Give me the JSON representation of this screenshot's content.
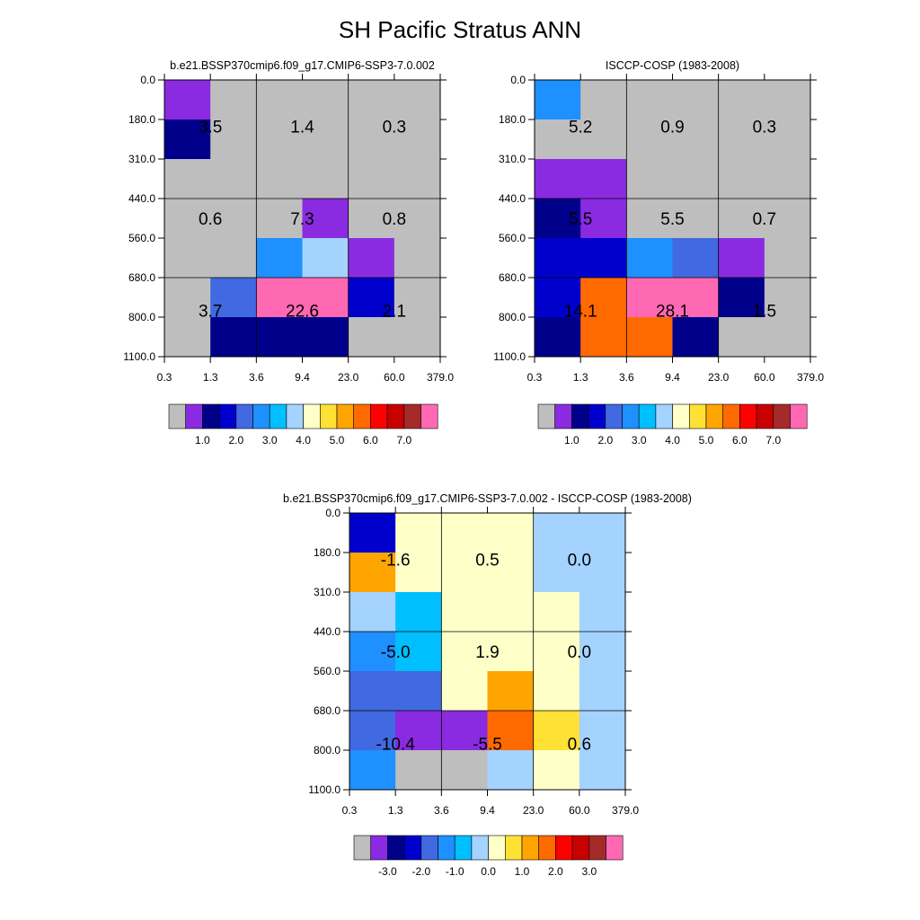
{
  "page": {
    "title": "SH Pacific Stratus ANN"
  },
  "palette": {
    "gray": "#BEBEBE",
    "purple": "#8A2BE2",
    "navy": "#00008B",
    "blue": "#0000CD",
    "royal": "#4169E1",
    "dodger": "#1E90FF",
    "deepsky": "#00BFFF",
    "lightblue": "#A4D3FF",
    "cream": "#FFFFC8",
    "gold": "#FFE135",
    "orange": "#FFA500",
    "darkorange": "#FF6A00",
    "red": "#FF0000",
    "crimson": "#C80000",
    "brown": "#A52A2A",
    "pink": "#FF69B4"
  },
  "chart_data": [
    {
      "id": "model",
      "type": "heatmap",
      "title": "b.e21.BSSP370cmip6.f09_g17.CMIP6-SSP3-7.0.002",
      "x_ticks": [
        "0.3",
        "1.3",
        "3.6",
        "9.4",
        "23.0",
        "60.0",
        "379.0"
      ],
      "y_ticks": [
        "0.0",
        "180.0",
        "310.0",
        "440.0",
        "560.0",
        "680.0",
        "800.0",
        "1100.0"
      ],
      "cells": [
        [
          "purple",
          "gray",
          "gray",
          "gray",
          "gray",
          "gray"
        ],
        [
          "navy",
          "gray",
          "gray",
          "gray",
          "gray",
          "gray"
        ],
        [
          "gray",
          "gray",
          "gray",
          "gray",
          "gray",
          "gray"
        ],
        [
          "gray",
          "gray",
          "gray",
          "purple",
          "gray",
          "gray"
        ],
        [
          "gray",
          "gray",
          "dodger",
          "lightblue",
          "purple",
          "gray"
        ],
        [
          "gray",
          "royal",
          "pink",
          "pink",
          "blue",
          "gray"
        ],
        [
          "gray",
          "navy",
          "navy",
          "navy",
          "gray",
          "gray"
        ]
      ],
      "box_labels": [
        [
          "3.5",
          "1.4",
          "0.3"
        ],
        [
          "0.6",
          "7.3",
          "0.8"
        ],
        [
          "3.7",
          "22.6",
          "2.1"
        ]
      ],
      "colorbar": {
        "colors": [
          "gray",
          "purple",
          "navy",
          "blue",
          "royal",
          "dodger",
          "deepsky",
          "lightblue",
          "cream",
          "gold",
          "orange",
          "darkorange",
          "red",
          "crimson",
          "brown",
          "pink"
        ],
        "labels": [
          "1.0",
          "2.0",
          "3.0",
          "4.0",
          "5.0",
          "6.0",
          "7.0"
        ]
      }
    },
    {
      "id": "obs",
      "type": "heatmap",
      "title": "ISCCP-COSP (1983-2008)",
      "x_ticks": [
        "0.3",
        "1.3",
        "3.6",
        "9.4",
        "23.0",
        "60.0",
        "379.0"
      ],
      "y_ticks": [
        "0.0",
        "180.0",
        "310.0",
        "440.0",
        "560.0",
        "680.0",
        "800.0",
        "1100.0"
      ],
      "cells": [
        [
          "dodger",
          "gray",
          "gray",
          "gray",
          "gray",
          "gray"
        ],
        [
          "gray",
          "gray",
          "gray",
          "gray",
          "gray",
          "gray"
        ],
        [
          "purple",
          "purple",
          "gray",
          "gray",
          "gray",
          "gray"
        ],
        [
          "navy",
          "purple",
          "gray",
          "gray",
          "gray",
          "gray"
        ],
        [
          "blue",
          "blue",
          "dodger",
          "royal",
          "purple",
          "gray"
        ],
        [
          "blue",
          "darkorange",
          "pink",
          "pink",
          "navy",
          "gray"
        ],
        [
          "navy",
          "darkorange",
          "darkorange",
          "navy",
          "gray",
          "gray"
        ]
      ],
      "box_labels": [
        [
          "5.2",
          "0.9",
          "0.3"
        ],
        [
          "5.5",
          "5.5",
          "0.7"
        ],
        [
          "14.1",
          "28.1",
          "1.5"
        ]
      ],
      "colorbar": {
        "colors": [
          "gray",
          "purple",
          "navy",
          "blue",
          "royal",
          "dodger",
          "deepsky",
          "lightblue",
          "cream",
          "gold",
          "orange",
          "darkorange",
          "red",
          "crimson",
          "brown",
          "pink"
        ],
        "labels": [
          "1.0",
          "2.0",
          "3.0",
          "4.0",
          "5.0",
          "6.0",
          "7.0"
        ]
      }
    },
    {
      "id": "diff",
      "type": "heatmap",
      "title": "b.e21.BSSP370cmip6.f09_g17.CMIP6-SSP3-7.0.002 - ISCCP-COSP (1983-2008)",
      "x_ticks": [
        "0.3",
        "1.3",
        "3.6",
        "9.4",
        "23.0",
        "60.0",
        "379.0"
      ],
      "y_ticks": [
        "0.0",
        "180.0",
        "310.0",
        "440.0",
        "560.0",
        "680.0",
        "800.0",
        "1100.0"
      ],
      "cells": [
        [
          "blue",
          "cream",
          "cream",
          "cream",
          "lightblue",
          "lightblue"
        ],
        [
          "orange",
          "cream",
          "cream",
          "cream",
          "lightblue",
          "lightblue"
        ],
        [
          "lightblue",
          "deepsky",
          "cream",
          "cream",
          "cream",
          "lightblue"
        ],
        [
          "dodger",
          "deepsky",
          "cream",
          "cream",
          "cream",
          "lightblue"
        ],
        [
          "royal",
          "royal",
          "cream",
          "orange",
          "cream",
          "lightblue"
        ],
        [
          "royal",
          "purple",
          "purple",
          "darkorange",
          "gold",
          "lightblue"
        ],
        [
          "dodger",
          "gray",
          "gray",
          "lightblue",
          "cream",
          "lightblue"
        ]
      ],
      "box_labels": [
        [
          "-1.6",
          "0.5",
          "0.0"
        ],
        [
          "-5.0",
          "1.9",
          "0.0"
        ],
        [
          "-10.4",
          "-5.5",
          "0.6"
        ]
      ],
      "colorbar": {
        "colors": [
          "gray",
          "purple",
          "navy",
          "blue",
          "royal",
          "dodger",
          "deepsky",
          "lightblue",
          "cream",
          "gold",
          "orange",
          "darkorange",
          "red",
          "crimson",
          "brown",
          "pink"
        ],
        "labels": [
          "-3.0",
          "-2.0",
          "-1.0",
          "0.0",
          "1.0",
          "2.0",
          "3.0"
        ]
      }
    }
  ]
}
